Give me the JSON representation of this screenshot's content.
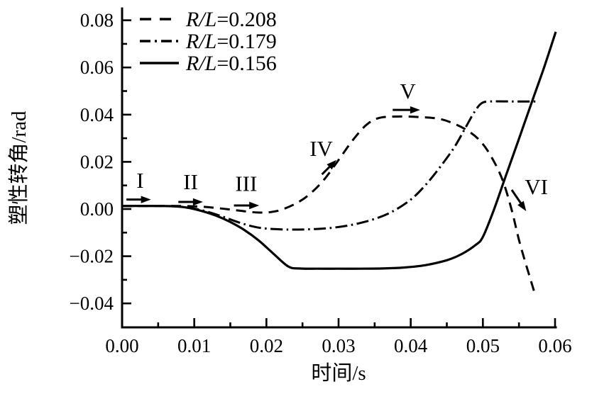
{
  "figure": {
    "background": "#ffffff",
    "ink": "#000000"
  },
  "chart_data": {
    "type": "line",
    "title": "",
    "xlabel": "时间/s",
    "ylabel": "塑性转角/rad",
    "xlim": [
      0,
      0.06
    ],
    "ylim": [
      -0.05,
      0.085
    ],
    "grid": false,
    "legend_position": "top-left",
    "x_ticks": {
      "values": [
        0,
        0.01,
        0.02,
        0.03,
        0.04,
        0.05,
        0.06
      ],
      "labels": [
        "0.00",
        "0.01",
        "0.02",
        "0.03",
        "0.04",
        "0.05",
        "0.06"
      ],
      "minor_step": 0.005
    },
    "y_ticks": {
      "values": [
        0.08,
        0.06,
        0.04,
        0.02,
        0,
        -0.02,
        -0.04
      ],
      "labels": [
        "0.08",
        "0.06",
        "0.04",
        "0.02",
        "0.00",
        "−0.02",
        "−0.04"
      ],
      "minor_step": 0.01
    },
    "legend_items": [
      "R/L=0.208",
      "R/L=0.179",
      "R/L=0.156"
    ],
    "series": [
      {
        "name": "R/L=0.208",
        "line_style": "dashed",
        "points": [
          [
            0,
            0.0013
          ],
          [
            0.005,
            0.0013
          ],
          [
            0.008,
            0.0013
          ],
          [
            0.011,
            0.001
          ],
          [
            0.0135,
            0.0003
          ],
          [
            0.016,
            -0.0006
          ],
          [
            0.019,
            -0.0015
          ],
          [
            0.0215,
            -0.0008
          ],
          [
            0.024,
            0.0022
          ],
          [
            0.026,
            0.0063
          ],
          [
            0.028,
            0.0125
          ],
          [
            0.03,
            0.0208
          ],
          [
            0.032,
            0.0293
          ],
          [
            0.0338,
            0.0355
          ],
          [
            0.0355,
            0.0385
          ],
          [
            0.038,
            0.0392
          ],
          [
            0.041,
            0.039
          ],
          [
            0.0438,
            0.0383
          ],
          [
            0.046,
            0.0362
          ],
          [
            0.048,
            0.033
          ],
          [
            0.0497,
            0.0286
          ],
          [
            0.0512,
            0.022
          ],
          [
            0.0527,
            0.0125
          ],
          [
            0.054,
            -0.0005
          ],
          [
            0.0552,
            -0.0154
          ],
          [
            0.0571,
            -0.0349
          ]
        ]
      },
      {
        "name": "R/L=0.179",
        "line_style": "dash-dot",
        "points": [
          [
            0,
            0.0013
          ],
          [
            0.005,
            0.0013
          ],
          [
            0.008,
            0.001
          ],
          [
            0.01,
            0.0002
          ],
          [
            0.012,
            -0.0013
          ],
          [
            0.014,
            -0.0033
          ],
          [
            0.016,
            -0.0055
          ],
          [
            0.018,
            -0.0073
          ],
          [
            0.02,
            -0.0083
          ],
          [
            0.023,
            -0.0087
          ],
          [
            0.026,
            -0.0086
          ],
          [
            0.029,
            -0.008
          ],
          [
            0.032,
            -0.0066
          ],
          [
            0.035,
            -0.0042
          ],
          [
            0.0375,
            -0.001
          ],
          [
            0.04,
            0.004
          ],
          [
            0.042,
            0.01
          ],
          [
            0.044,
            0.0175
          ],
          [
            0.046,
            0.026
          ],
          [
            0.0475,
            0.034
          ],
          [
            0.0488,
            0.041
          ],
          [
            0.0498,
            0.0448
          ],
          [
            0.051,
            0.0456
          ],
          [
            0.054,
            0.0456
          ],
          [
            0.0573,
            0.0456
          ]
        ]
      },
      {
        "name": "R/L=0.156",
        "line_style": "solid",
        "points": [
          [
            0,
            0.0013
          ],
          [
            0.004,
            0.0013
          ],
          [
            0.007,
            0.0012
          ],
          [
            0.009,
            0.0006
          ],
          [
            0.011,
            -0.0008
          ],
          [
            0.013,
            -0.0028
          ],
          [
            0.015,
            -0.0055
          ],
          [
            0.017,
            -0.009
          ],
          [
            0.019,
            -0.0135
          ],
          [
            0.021,
            -0.019
          ],
          [
            0.023,
            -0.0243
          ],
          [
            0.0245,
            -0.0252
          ],
          [
            0.027,
            -0.0253
          ],
          [
            0.03,
            -0.0253
          ],
          [
            0.033,
            -0.0253
          ],
          [
            0.036,
            -0.0252
          ],
          [
            0.039,
            -0.0248
          ],
          [
            0.042,
            -0.0238
          ],
          [
            0.045,
            -0.0217
          ],
          [
            0.047,
            -0.0192
          ],
          [
            0.049,
            -0.0152
          ],
          [
            0.05,
            -0.0118
          ],
          [
            0.0515,
            -0.0005
          ],
          [
            0.053,
            0.0125
          ],
          [
            0.055,
            0.0298
          ],
          [
            0.057,
            0.0472
          ],
          [
            0.0585,
            0.0602
          ],
          [
            0.0601,
            0.0751
          ]
        ]
      }
    ],
    "annotations": [
      {
        "label": "I",
        "label_x": 0.0025,
        "label_y": 0.012,
        "arrow": {
          "x1": 0.0006,
          "y1": 0.004,
          "x2": 0.004,
          "y2": 0.004
        }
      },
      {
        "label": "II",
        "label_x": 0.0095,
        "label_y": 0.0114,
        "arrow": {
          "x1": 0.0078,
          "y1": 0.003,
          "x2": 0.0112,
          "y2": 0.003
        }
      },
      {
        "label": "III",
        "label_x": 0.0172,
        "label_y": 0.0106,
        "arrow": {
          "x1": 0.0155,
          "y1": 0.0015,
          "x2": 0.019,
          "y2": 0.0015
        }
      },
      {
        "label": "IV",
        "label_x": 0.0276,
        "label_y": 0.0255,
        "arrow": {
          "x1": 0.0277,
          "y1": 0.0147,
          "x2": 0.0297,
          "y2": 0.0208
        }
      },
      {
        "label": "V",
        "label_x": 0.0396,
        "label_y": 0.0498,
        "arrow": {
          "x1": 0.0375,
          "y1": 0.042,
          "x2": 0.0413,
          "y2": 0.042
        }
      },
      {
        "label": "VI",
        "label_x": 0.0574,
        "label_y": 0.0093,
        "arrow": {
          "x1": 0.054,
          "y1": 0.0081,
          "x2": 0.056,
          "y2": -0.0009
        }
      }
    ]
  }
}
